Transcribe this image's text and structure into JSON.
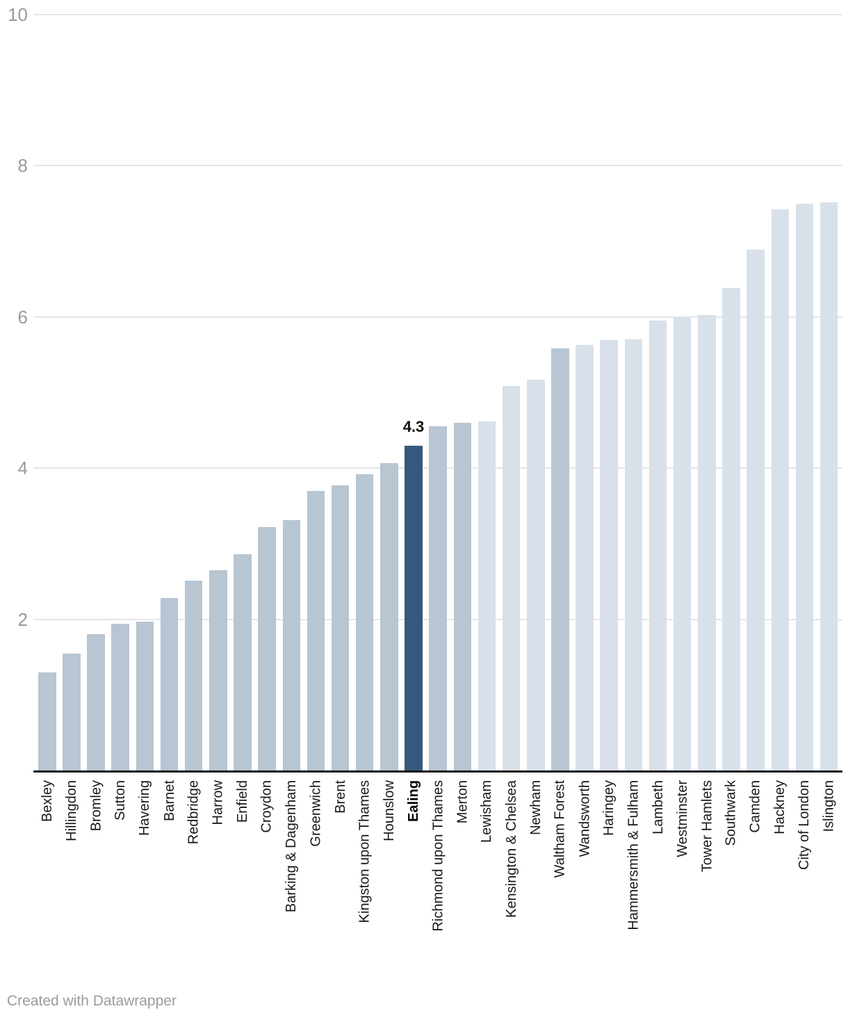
{
  "chart_data": {
    "type": "bar",
    "title": "",
    "xlabel": "",
    "ylabel": "",
    "ylim": [
      0,
      10
    ],
    "y_ticks": [
      2,
      4,
      6,
      8,
      10
    ],
    "grid": true,
    "sort_order": "ascending",
    "categories": [
      "Bexley",
      "Hillingdon",
      "Bromley",
      "Sutton",
      "Havering",
      "Barnet",
      "Redbridge",
      "Harrow",
      "Enfield",
      "Croydon",
      "Barking & Dagenham",
      "Greenwich",
      "Brent",
      "Kingston upon Thames",
      "Hounslow",
      "Ealing",
      "Richmond upon Thames",
      "Merton",
      "Lewisham",
      "Kensington & Chelsea",
      "Newham",
      "Waltham Forest",
      "Wandsworth",
      "Haringey",
      "Hammersmith & Fulham",
      "Lambeth",
      "Westminster",
      "Tower Hamlets",
      "Southwark",
      "Camden",
      "Hackney",
      "City of London",
      "Islington"
    ],
    "values": [
      1.3,
      1.55,
      1.8,
      1.94,
      1.97,
      2.28,
      2.51,
      2.65,
      2.86,
      3.22,
      3.31,
      3.7,
      3.77,
      3.92,
      4.07,
      4.3,
      4.55,
      4.6,
      4.62,
      5.09,
      5.17,
      5.58,
      5.63,
      5.69,
      5.7,
      5.95,
      5.99,
      6.03,
      6.38,
      6.89,
      7.42,
      7.5,
      7.52
    ],
    "shades": [
      "medium",
      "medium",
      "medium",
      "medium",
      "medium",
      "medium",
      "medium",
      "medium",
      "medium",
      "medium",
      "medium",
      "medium",
      "medium",
      "medium",
      "medium",
      "dark",
      "medium",
      "medium",
      "light",
      "light",
      "light",
      "medium",
      "light",
      "light",
      "light",
      "light",
      "light",
      "light",
      "light",
      "light",
      "light",
      "light",
      "light"
    ],
    "palette": {
      "medium": "#b8c5d2",
      "light": "#d8e1ea",
      "dark": "#35597c"
    },
    "highlight": {
      "category": "Ealing",
      "value_label": "4.3"
    },
    "legend": "none"
  },
  "footer": {
    "credit": "Created with Datawrapper"
  }
}
